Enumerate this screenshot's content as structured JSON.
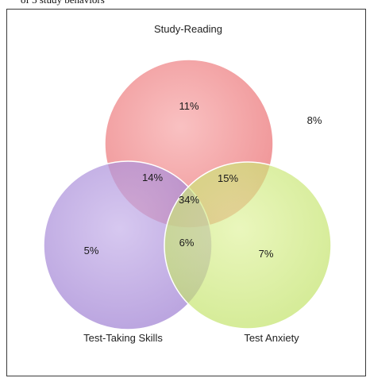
{
  "caption": "of 3 study behaviors",
  "diagram": {
    "sets": [
      {
        "key": "reading",
        "label": "Study-Reading",
        "color": "#ee6f72"
      },
      {
        "key": "skills",
        "label": "Test-Taking Skills",
        "color": "#a98bd8"
      },
      {
        "key": "anxiety",
        "label": "Test Anxiety",
        "color": "#c6e66b"
      }
    ],
    "regions": {
      "reading_only": "11%",
      "skills_only": "5%",
      "anxiety_only": "7%",
      "reading_skills": "14%",
      "reading_anxiety": "15%",
      "skills_anxiety": "6%",
      "all_three": "34%",
      "none": "8%"
    }
  }
}
